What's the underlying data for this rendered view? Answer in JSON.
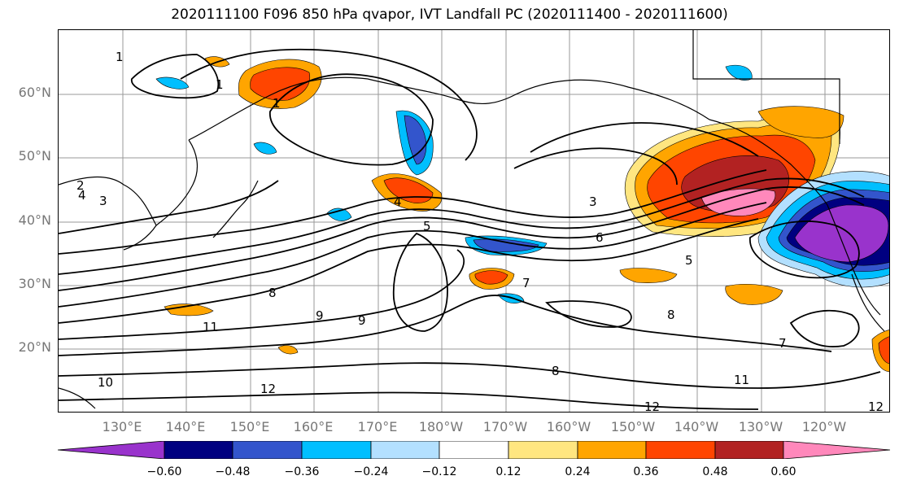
{
  "title": "2020111100 F096 850 hPa qvapor, IVT Landfall PC (2020111400 - 2020111600)",
  "lat_labels": [
    "60°N",
    "50°N",
    "40°N",
    "30°N",
    "20°N"
  ],
  "lon_labels": [
    "130°E",
    "140°E",
    "150°E",
    "160°E",
    "170°E",
    "180°W",
    "170°W",
    "160°W",
    "150°W",
    "140°W",
    "130°W",
    "120°W"
  ],
  "contour_labels": [
    "1",
    "1",
    "1",
    "2",
    "3",
    "4",
    "4",
    "5",
    "6",
    "3",
    "5",
    "7",
    "8",
    "9",
    "9",
    "8",
    "8",
    "10",
    "11",
    "11",
    "12",
    "12",
    "7",
    "12"
  ],
  "colorbar": {
    "tick_labels": [
      "−0.60",
      "−0.48",
      "−0.36",
      "−0.24",
      "−0.12",
      "0.12",
      "0.24",
      "0.36",
      "0.48",
      "0.60"
    ],
    "colors": [
      "#9933cc",
      "#000080",
      "#3355cc",
      "#00bfff",
      "#b3e0ff",
      "#ffffff",
      "#ffe680",
      "#ffa500",
      "#ff4500",
      "#b22222",
      "#ff88bb"
    ]
  }
}
